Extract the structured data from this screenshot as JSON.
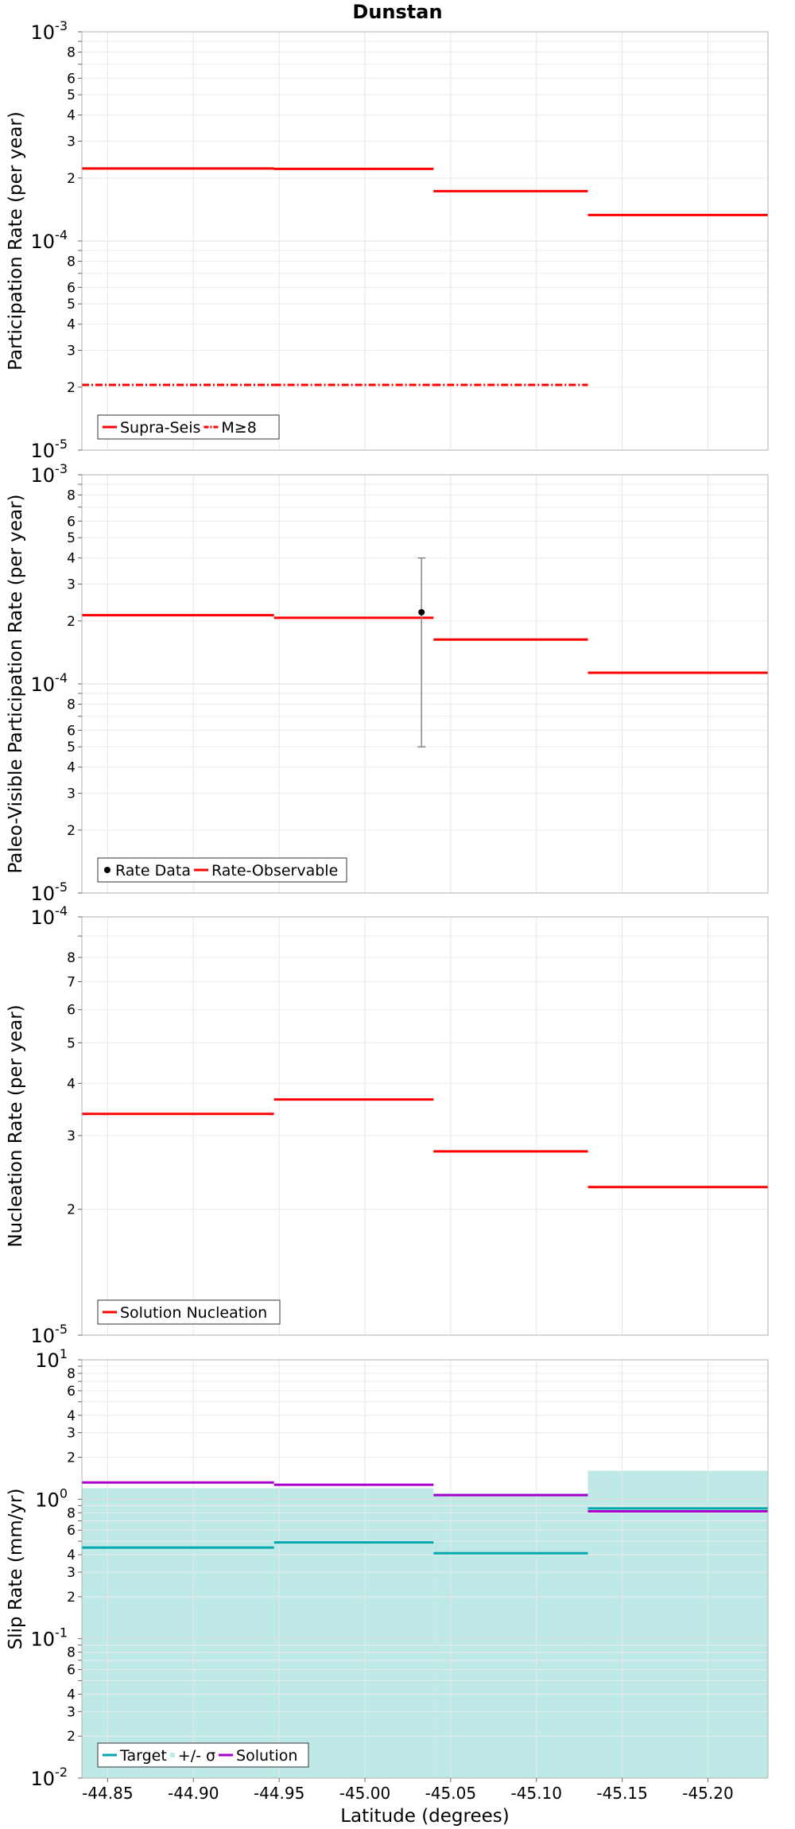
{
  "figure_title": "Dunstan",
  "x_axis_label": "Latitude (degrees)",
  "x_tick_labels": [
    "-44.85",
    "-44.90",
    "-44.95",
    "-45.00",
    "-45.05",
    "-45.10",
    "-45.15",
    "-45.20"
  ],
  "chart_data": [
    {
      "type": "line",
      "style": "step",
      "title": "Dunstan",
      "ylabel": "Participation Rate (per year)",
      "yscale": "log",
      "ylim": [
        1e-05,
        0.001
      ],
      "xlim": [
        -44.835,
        -45.235
      ],
      "grid": true,
      "legend_position": "bottom-left",
      "x_edges": [
        -44.835,
        -44.947,
        -45.04,
        -45.13,
        -45.235
      ],
      "series": [
        {
          "name": "Supra-Seis",
          "color": "#ff0000",
          "dash": "solid",
          "values": [
            0.000222,
            0.000221,
            0.000173,
            0.000133
          ]
        },
        {
          "name": "M≥8",
          "color": "#ff0000",
          "dash": "dashdot",
          "values": [
            2.05e-05,
            2.05e-05,
            2.05e-05,
            null
          ]
        }
      ]
    },
    {
      "type": "line",
      "style": "step",
      "ylabel": "Paleo-Visible Participation Rate (per year)",
      "yscale": "log",
      "ylim": [
        1e-05,
        0.001
      ],
      "xlim": [
        -44.835,
        -45.235
      ],
      "grid": true,
      "legend_position": "bottom-left",
      "x_edges": [
        -44.835,
        -44.947,
        -45.04,
        -45.13,
        -45.235
      ],
      "series": [
        {
          "name": "Rate-Observable",
          "color": "#ff0000",
          "dash": "solid",
          "values": [
            0.000213,
            0.000207,
            0.000163,
            0.000113
          ]
        }
      ],
      "points": [
        {
          "name": "Rate Data",
          "color": "#000000",
          "x": -45.033,
          "y": 0.00022,
          "ymin": 5e-05,
          "ymax": 0.0004
        }
      ]
    },
    {
      "type": "line",
      "style": "step",
      "ylabel": "Nucleation Rate (per year)",
      "yscale": "log",
      "ylim": [
        1e-05,
        0.0001
      ],
      "xlim": [
        -44.835,
        -45.235
      ],
      "grid": true,
      "legend_position": "bottom-left",
      "x_edges": [
        -44.835,
        -44.947,
        -45.04,
        -45.13,
        -45.235
      ],
      "series": [
        {
          "name": "Solution Nucleation",
          "color": "#ff0000",
          "dash": "solid",
          "values": [
            3.38e-05,
            3.66e-05,
            2.75e-05,
            2.26e-05
          ]
        }
      ]
    },
    {
      "type": "line",
      "style": "step",
      "ylabel": "Slip Rate (mm/yr)",
      "yscale": "log",
      "ylim": [
        0.01,
        10
      ],
      "xlim": [
        -44.835,
        -45.235
      ],
      "grid": true,
      "legend_position": "bottom-left",
      "x_edges": [
        -44.835,
        -44.947,
        -45.04,
        -45.13,
        -45.235
      ],
      "bands": [
        {
          "name": "+/- σ",
          "color": "#bfe9e6",
          "upper": [
            1.2,
            1.2,
            1.1,
            1.6
          ],
          "lower": [
            0.01,
            0.01,
            0.01,
            0.01
          ]
        }
      ],
      "series": [
        {
          "name": "Target",
          "color": "#00a8b0",
          "dash": "solid",
          "values": [
            0.45,
            0.49,
            0.41,
            0.86
          ]
        },
        {
          "name": "Solution",
          "color": "#aa00cc",
          "dash": "solid",
          "values": [
            1.32,
            1.27,
            1.07,
            0.82
          ]
        }
      ]
    }
  ]
}
